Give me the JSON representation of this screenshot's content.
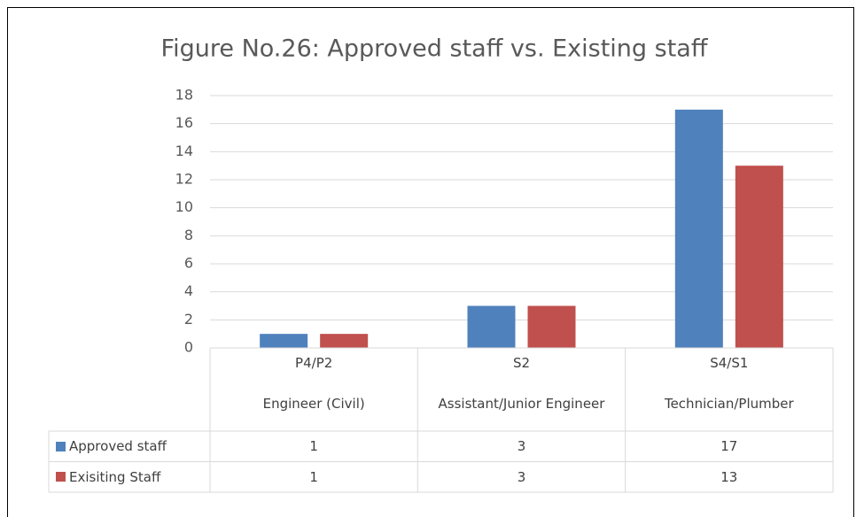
{
  "chart_data": {
    "type": "bar",
    "title": "Figure No.26: Approved staff vs. Existing staff",
    "categories": [
      "P4/P2",
      "S2",
      "S4/S1"
    ],
    "category_descriptions": [
      "Engineer (Civil)",
      "Assistant/Junior Engineer",
      "Technician/Plumber"
    ],
    "series": [
      {
        "name": "Approved staff",
        "color": "#4f81bd",
        "values": [
          1,
          3,
          17
        ]
      },
      {
        "name": "Exisiting Staff",
        "color": "#c0504d",
        "values": [
          1,
          3,
          13
        ]
      }
    ],
    "ylim": [
      0,
      18
    ],
    "yticks": [
      0,
      2,
      4,
      6,
      8,
      10,
      12,
      14,
      16,
      18
    ],
    "grid": true,
    "data_table": true
  }
}
